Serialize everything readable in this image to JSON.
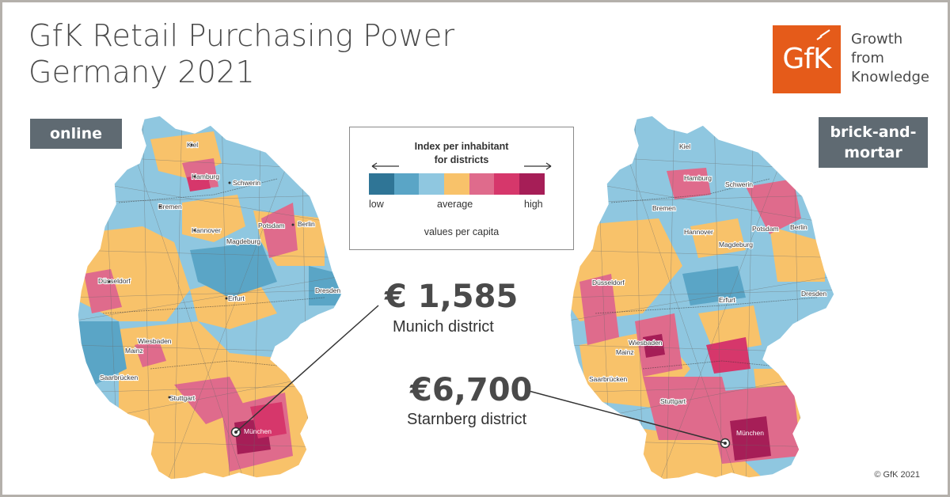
{
  "header": {
    "title_line1": "GfK Retail Purchasing Power",
    "title_line2": "Germany 2021"
  },
  "brand": {
    "logo_text": "GfK",
    "tagline": [
      "Growth",
      "from",
      "Knowledge"
    ],
    "color": "#e55b1a"
  },
  "maps": {
    "left_label": "online",
    "right_label_line1": "brick-and-",
    "right_label_line2": "mortar",
    "cities": [
      "Kiel",
      "Hamburg",
      "Schwerin",
      "Bremen",
      "Hannover",
      "Potsdam",
      "Berlin",
      "Magdeburg",
      "Düsseldorf",
      "Erfurt",
      "Dresden",
      "Wiesbaden",
      "Mainz",
      "Saarbrücken",
      "Stuttgart",
      "München"
    ]
  },
  "legend": {
    "title_line1": "Index per inhabitant",
    "title_line2": "for districts",
    "low": "low",
    "average": "average",
    "high": "high",
    "subtitle": "values per capita",
    "scale_colors": [
      "#2f7596",
      "#5aa5c6",
      "#8fc7e0",
      "#f8c26a",
      "#df6b8c",
      "#d6376b",
      "#a61e57"
    ]
  },
  "callouts": {
    "online_value": "€ 1,585",
    "online_label": "Munich district",
    "store_value": "€6,700",
    "store_label": "Starnberg district"
  },
  "footer": {
    "copyright": "© GfK 2021"
  }
}
